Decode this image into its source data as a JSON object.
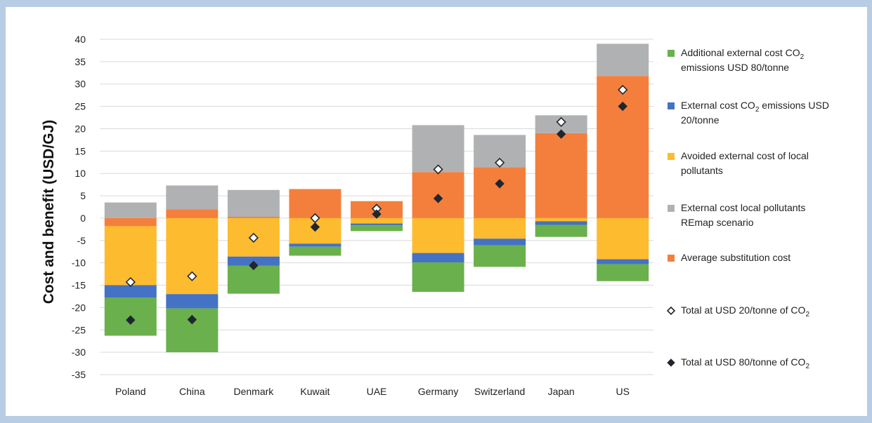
{
  "chart_data": {
    "type": "bar",
    "stacked": true,
    "ylabel": "Cost  and benefit (USD/GJ)",
    "ylim": [
      -35,
      40
    ],
    "yticks": [
      -35,
      -30,
      -25,
      -20,
      -15,
      -10,
      -5,
      0,
      5,
      10,
      15,
      20,
      25,
      30,
      35,
      40
    ],
    "grid": true,
    "legend_position": "right",
    "categories": [
      "Poland",
      "China",
      "Denmark",
      "Kuwait",
      "UAE",
      "Germany",
      "Switzerland",
      "Japan",
      "US"
    ],
    "series": [
      {
        "key": "avg_sub",
        "name": "Average substitution cost",
        "color": "#f47f3c",
        "values": [
          -1.8,
          2.0,
          0.3,
          6.5,
          3.8,
          10.3,
          11.4,
          19.0,
          31.8
        ]
      },
      {
        "key": "ext_local",
        "name": "External cost local pollutants REmap scenario",
        "color": "#b0b1b3",
        "values": [
          3.5,
          5.3,
          6.0,
          0.0,
          0.0,
          10.5,
          7.2,
          4.0,
          7.2
        ]
      },
      {
        "key": "avoided_local",
        "name": "Avoided external cost of local pollutants",
        "color": "#fdbb2f",
        "values": [
          -13.2,
          -17.0,
          -8.6,
          -5.7,
          -1.2,
          -7.8,
          -4.6,
          -0.7,
          -9.2
        ]
      },
      {
        "key": "co2_20",
        "name": "External cost CO2 emissions USD 20/tonne",
        "color": "#4472c4",
        "values": [
          -2.8,
          -3.2,
          -2.0,
          -0.7,
          -0.4,
          -2.1,
          -1.5,
          -0.8,
          -1.1
        ]
      },
      {
        "key": "co2_80_add",
        "name": "Additional external cost CO2 emissions USD 80/tonne",
        "color": "#6ab04c",
        "values": [
          -8.5,
          -9.8,
          -6.3,
          -2.0,
          -1.3,
          -6.6,
          -4.8,
          -2.7,
          -3.8
        ]
      }
    ],
    "markers": [
      {
        "key": "total20",
        "name": "Total at USD 20/tonne of CO2",
        "style": "hollow",
        "values": [
          -14.3,
          -13.0,
          -4.4,
          0.0,
          2.1,
          10.9,
          12.4,
          21.5,
          28.7
        ]
      },
      {
        "key": "total80",
        "name": "Total at USD 80/tonne of CO2",
        "style": "filled",
        "values": [
          -22.8,
          -22.7,
          -10.6,
          -2.0,
          0.9,
          4.4,
          7.7,
          18.8,
          25.0
        ]
      }
    ],
    "legend": [
      {
        "type": "square",
        "color": "#6ab04c",
        "lines": [
          [
            "Additional external cost CO",
            "2",
            ""
          ],
          [
            "emissions USD 80/tonne",
            "",
            ""
          ]
        ]
      },
      {
        "type": "square",
        "color": "#4472c4",
        "lines": [
          [
            "External cost CO",
            "2",
            " emissions USD"
          ],
          [
            "20/tonne",
            "",
            ""
          ]
        ]
      },
      {
        "type": "square",
        "color": "#fdbb2f",
        "lines": [
          [
            "Avoided external cost of local",
            "",
            ""
          ],
          [
            "pollutants",
            "",
            ""
          ]
        ]
      },
      {
        "type": "square",
        "color": "#b0b1b3",
        "lines": [
          [
            "External cost local pollutants",
            "",
            ""
          ],
          [
            "REmap scenario",
            "",
            ""
          ]
        ]
      },
      {
        "type": "square",
        "color": "#f47f3c",
        "lines": [
          [
            "Average substitution cost",
            "",
            ""
          ]
        ]
      },
      {
        "type": "hollow",
        "color": "#222222",
        "lines": [
          [
            "Total at USD 20/tonne of CO",
            "2",
            ""
          ]
        ]
      },
      {
        "type": "filled",
        "color": "#222222",
        "lines": [
          [
            "Total at USD 80/tonne of CO",
            "2",
            ""
          ]
        ]
      }
    ]
  }
}
